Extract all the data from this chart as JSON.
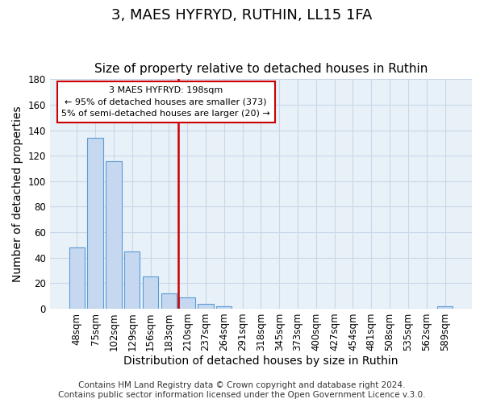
{
  "title": "3, MAES HYFRYD, RUTHIN, LL15 1FA",
  "subtitle": "Size of property relative to detached houses in Ruthin",
  "xlabel": "Distribution of detached houses by size in Ruthin",
  "ylabel": "Number of detached properties",
  "bar_labels": [
    "48sqm",
    "75sqm",
    "102sqm",
    "129sqm",
    "156sqm",
    "183sqm",
    "210sqm",
    "237sqm",
    "264sqm",
    "291sqm",
    "318sqm",
    "345sqm",
    "373sqm",
    "400sqm",
    "427sqm",
    "454sqm",
    "481sqm",
    "508sqm",
    "535sqm",
    "562sqm",
    "589sqm"
  ],
  "bar_values": [
    48,
    134,
    116,
    45,
    25,
    12,
    9,
    4,
    2,
    0,
    0,
    0,
    0,
    0,
    0,
    0,
    0,
    0,
    0,
    0,
    2
  ],
  "bar_color": "#c5d8f0",
  "bar_edge_color": "#5b9bd5",
  "ax_bg_color": "#e8f0f8",
  "ylim": [
    0,
    180
  ],
  "yticks": [
    0,
    20,
    40,
    60,
    80,
    100,
    120,
    140,
    160,
    180
  ],
  "vline_pos": 5.5,
  "vline_color": "#cc0000",
  "annotation_title": "3 MAES HYFRYD: 198sqm",
  "annotation_line1": "← 95% of detached houses are smaller (373)",
  "annotation_line2": "5% of semi-detached houses are larger (20) →",
  "annotation_box_color": "#ffffff",
  "annotation_box_edge_color": "#cc0000",
  "footer_line1": "Contains HM Land Registry data © Crown copyright and database right 2024.",
  "footer_line2": "Contains public sector information licensed under the Open Government Licence v.3.0.",
  "background_color": "#ffffff",
  "grid_color": "#c8d8e8",
  "title_fontsize": 13,
  "subtitle_fontsize": 11,
  "axis_label_fontsize": 10,
  "tick_fontsize": 8.5,
  "footer_fontsize": 7.5
}
